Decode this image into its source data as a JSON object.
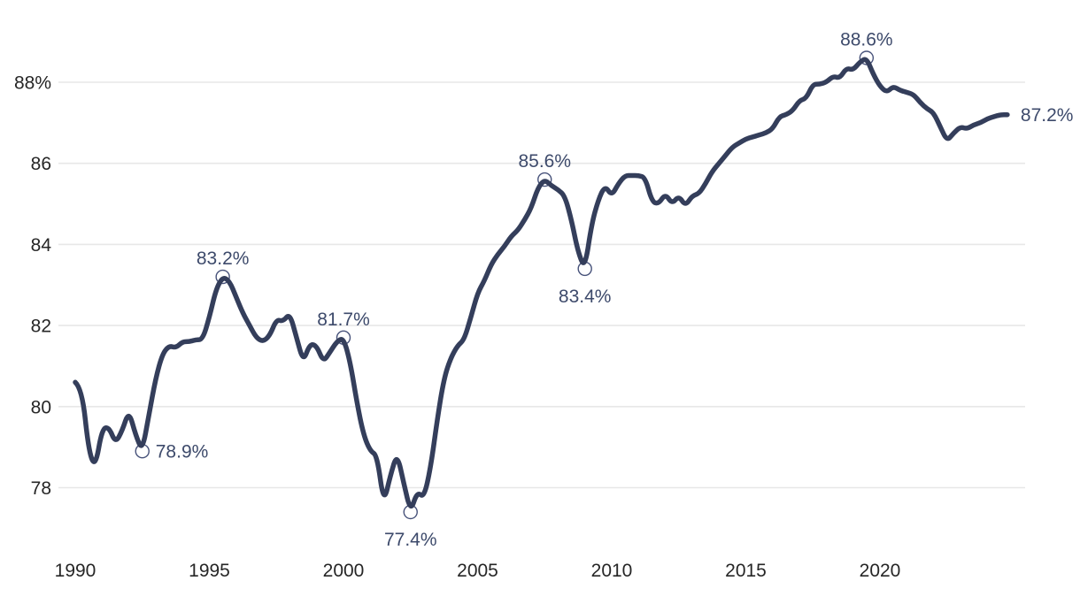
{
  "chart_data": {
    "type": "line",
    "x_start": 1990,
    "x_interval": 0.25,
    "values": [
      80.6,
      80.45,
      78.9,
      78.5,
      79.45,
      79.5,
      79.1,
      79.4,
      79.9,
      79.3,
      78.9,
      79.8,
      80.7,
      81.3,
      81.5,
      81.45,
      81.6,
      81.6,
      81.65,
      81.65,
      82.2,
      82.9,
      83.2,
      83.1,
      82.7,
      82.3,
      82.0,
      81.7,
      81.6,
      81.75,
      82.15,
      82.1,
      82.3,
      81.7,
      81.1,
      81.55,
      81.5,
      81.1,
      81.35,
      81.6,
      81.7,
      81.1,
      80.1,
      79.3,
      78.9,
      78.8,
      77.6,
      78.3,
      78.85,
      78.1,
      77.4,
      77.9,
      77.75,
      78.5,
      79.7,
      80.7,
      81.2,
      81.5,
      81.65,
      82.2,
      82.8,
      83.1,
      83.5,
      83.75,
      83.95,
      84.2,
      84.35,
      84.6,
      84.9,
      85.4,
      85.6,
      85.45,
      85.35,
      85.2,
      84.6,
      83.8,
      83.4,
      84.5,
      85.1,
      85.45,
      85.2,
      85.5,
      85.7,
      85.7,
      85.7,
      85.65,
      85.05,
      85.0,
      85.25,
      85.0,
      85.2,
      84.95,
      85.2,
      85.25,
      85.5,
      85.8,
      86.0,
      86.2,
      86.4,
      86.5,
      86.6,
      86.65,
      86.7,
      86.75,
      86.85,
      87.15,
      87.2,
      87.3,
      87.55,
      87.6,
      87.95,
      87.95,
      88.0,
      88.15,
      88.1,
      88.35,
      88.3,
      88.5,
      88.6,
      88.2,
      87.9,
      87.75,
      87.9,
      87.8,
      87.75,
      87.7,
      87.5,
      87.35,
      87.25,
      86.9,
      86.55,
      86.75,
      86.9,
      86.85,
      86.95,
      87.0,
      87.1,
      87.15,
      87.2,
      87.2
    ],
    "x_ticks": [
      {
        "value": 1990,
        "label": "1990"
      },
      {
        "value": 1995,
        "label": "1995"
      },
      {
        "value": 2000,
        "label": "2000"
      },
      {
        "value": 2005,
        "label": "2005"
      },
      {
        "value": 2010,
        "label": "2010"
      },
      {
        "value": 2015,
        "label": "2015"
      },
      {
        "value": 2020,
        "label": "2020"
      }
    ],
    "y_ticks": [
      {
        "value": 78,
        "label": "78"
      },
      {
        "value": 80,
        "label": "80"
      },
      {
        "value": 82,
        "label": "82"
      },
      {
        "value": 84,
        "label": "84"
      },
      {
        "value": 86,
        "label": "86"
      },
      {
        "value": 88,
        "label": "88%"
      }
    ],
    "annotations": [
      {
        "t": 1992.5,
        "value": 78.9,
        "label": "78.9%",
        "placement": "right",
        "marker": true
      },
      {
        "t": 1995.5,
        "value": 83.2,
        "label": "83.2%",
        "placement": "above",
        "marker": true
      },
      {
        "t": 2000.0,
        "value": 81.7,
        "label": "81.7%",
        "placement": "above",
        "marker": true
      },
      {
        "t": 2002.5,
        "value": 77.4,
        "label": "77.4%",
        "placement": "below",
        "marker": true
      },
      {
        "t": 2007.5,
        "value": 85.6,
        "label": "85.6%",
        "placement": "above",
        "marker": true
      },
      {
        "t": 2009.0,
        "value": 83.4,
        "label": "83.4%",
        "placement": "below",
        "marker": true
      },
      {
        "t": 2019.5,
        "value": 88.6,
        "label": "88.6%",
        "placement": "above",
        "marker": true
      },
      {
        "t": 2024.75,
        "value": 87.2,
        "label": "87.2%",
        "placement": "right",
        "marker": false
      }
    ],
    "xlim": [
      1989.4,
      2025.4
    ],
    "ylim": [
      77,
      89
    ],
    "grid": "horizontal-only",
    "legend": "none",
    "title": "",
    "xlabel": "",
    "ylabel": "",
    "colors": {
      "line": "#343e5b",
      "marker_ring": "#47527a",
      "marker_fill": "#ffffff",
      "annotation_text": "#3d4a6b",
      "axis_text": "#262626",
      "grid": "#e7e7e7",
      "background": "#ffffff"
    }
  }
}
